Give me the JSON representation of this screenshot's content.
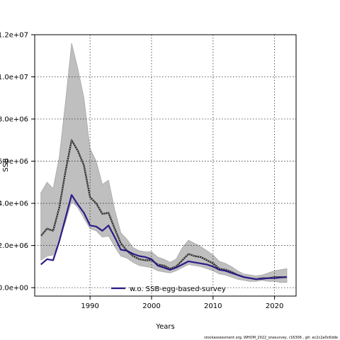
{
  "chart_data": {
    "type": "line",
    "title": "",
    "xlabel": "Years",
    "ylabel": "SSB",
    "xlim": [
      1981,
      2023.5
    ],
    "ylim": [
      -400000,
      12000000
    ],
    "xticks": [
      1990,
      2000,
      2010,
      2020
    ],
    "xtick_labels": [
      "1990",
      "2000",
      "2010",
      "2020"
    ],
    "yticks": [
      0,
      2000000,
      4000000,
      6000000,
      8000000,
      10000000,
      12000000
    ],
    "ytick_labels": [
      "0.0e+00",
      "2.0e+06",
      "4.0e+06",
      "6.0e+06",
      "8.0e+06",
      "1.0e+07",
      "1.2e+07"
    ],
    "grid": true,
    "legend_position": "bottom-center",
    "x": [
      1982,
      1983,
      1984,
      1985,
      1986,
      1987,
      1988,
      1989,
      1990,
      1991,
      1992,
      1993,
      1994,
      1995,
      1996,
      1997,
      1998,
      1999,
      2000,
      2001,
      2002,
      2003,
      2004,
      2005,
      2006,
      2007,
      2008,
      2009,
      2010,
      2011,
      2012,
      2013,
      2014,
      2015,
      2016,
      2017,
      2018,
      2019,
      2020,
      2021,
      2022
    ],
    "band_upper": [
      4500000,
      5000000,
      4700000,
      6200000,
      8800000,
      11600000,
      10400000,
      9000000,
      6600000,
      6000000,
      4900000,
      5100000,
      3700000,
      2600000,
      2300000,
      1900000,
      1750000,
      1700000,
      1700000,
      1450000,
      1350000,
      1200000,
      1350000,
      1900000,
      2250000,
      2100000,
      1950000,
      1750000,
      1550000,
      1250000,
      1150000,
      1000000,
      800000,
      650000,
      600000,
      550000,
      600000,
      700000,
      800000,
      850000,
      900000
    ],
    "band_lower": [
      1300000,
      1500000,
      1550000,
      2200000,
      3100000,
      4100000,
      3800000,
      3300000,
      2800000,
      2700000,
      2400000,
      2450000,
      1950000,
      1500000,
      1400000,
      1200000,
      1050000,
      1000000,
      950000,
      800000,
      750000,
      700000,
      800000,
      950000,
      1100000,
      1050000,
      1000000,
      900000,
      800000,
      650000,
      600000,
      500000,
      400000,
      350000,
      300000,
      300000,
      350000,
      300000,
      300000,
      250000,
      250000
    ],
    "series": [
      {
        "values": [
          2450000,
          2800000,
          2700000,
          3800000,
          5500000,
          7000000,
          6500000,
          5800000,
          4300000,
          4000000,
          3500000,
          3550000,
          2800000,
          2100000,
          1750000,
          1500000,
          1350000,
          1300000,
          1300000,
          1100000,
          1050000,
          900000,
          1000000,
          1300000,
          1600000,
          1500000,
          1450000,
          1300000,
          1150000,
          900000,
          850000,
          750000,
          600000,
          500000,
          450000,
          400000,
          450000,
          450000,
          500000,
          500000,
          500000
        ],
        "color": "#2b2b2b",
        "style": "dotted"
      },
      {
        "name": "w.o. SSB-egg-based-survey",
        "values": [
          1100000,
          1350000,
          1300000,
          2200000,
          3300000,
          4400000,
          3950000,
          3550000,
          2950000,
          2900000,
          2700000,
          2950000,
          2400000,
          1800000,
          1750000,
          1600000,
          1500000,
          1450000,
          1350000,
          1050000,
          950000,
          850000,
          950000,
          1100000,
          1250000,
          1200000,
          1150000,
          1100000,
          1000000,
          850000,
          800000,
          700000,
          600000,
          500000,
          450000,
          400000,
          420000,
          450000,
          450000,
          480000,
          500000
        ],
        "color": "#2e1a87",
        "style": "solid"
      }
    ],
    "band_color": "#bfbfbf",
    "credit": "stockassessment.org, WHOM_2022_onesurvey, r16306 , git: ec2c2a0c6dde"
  }
}
